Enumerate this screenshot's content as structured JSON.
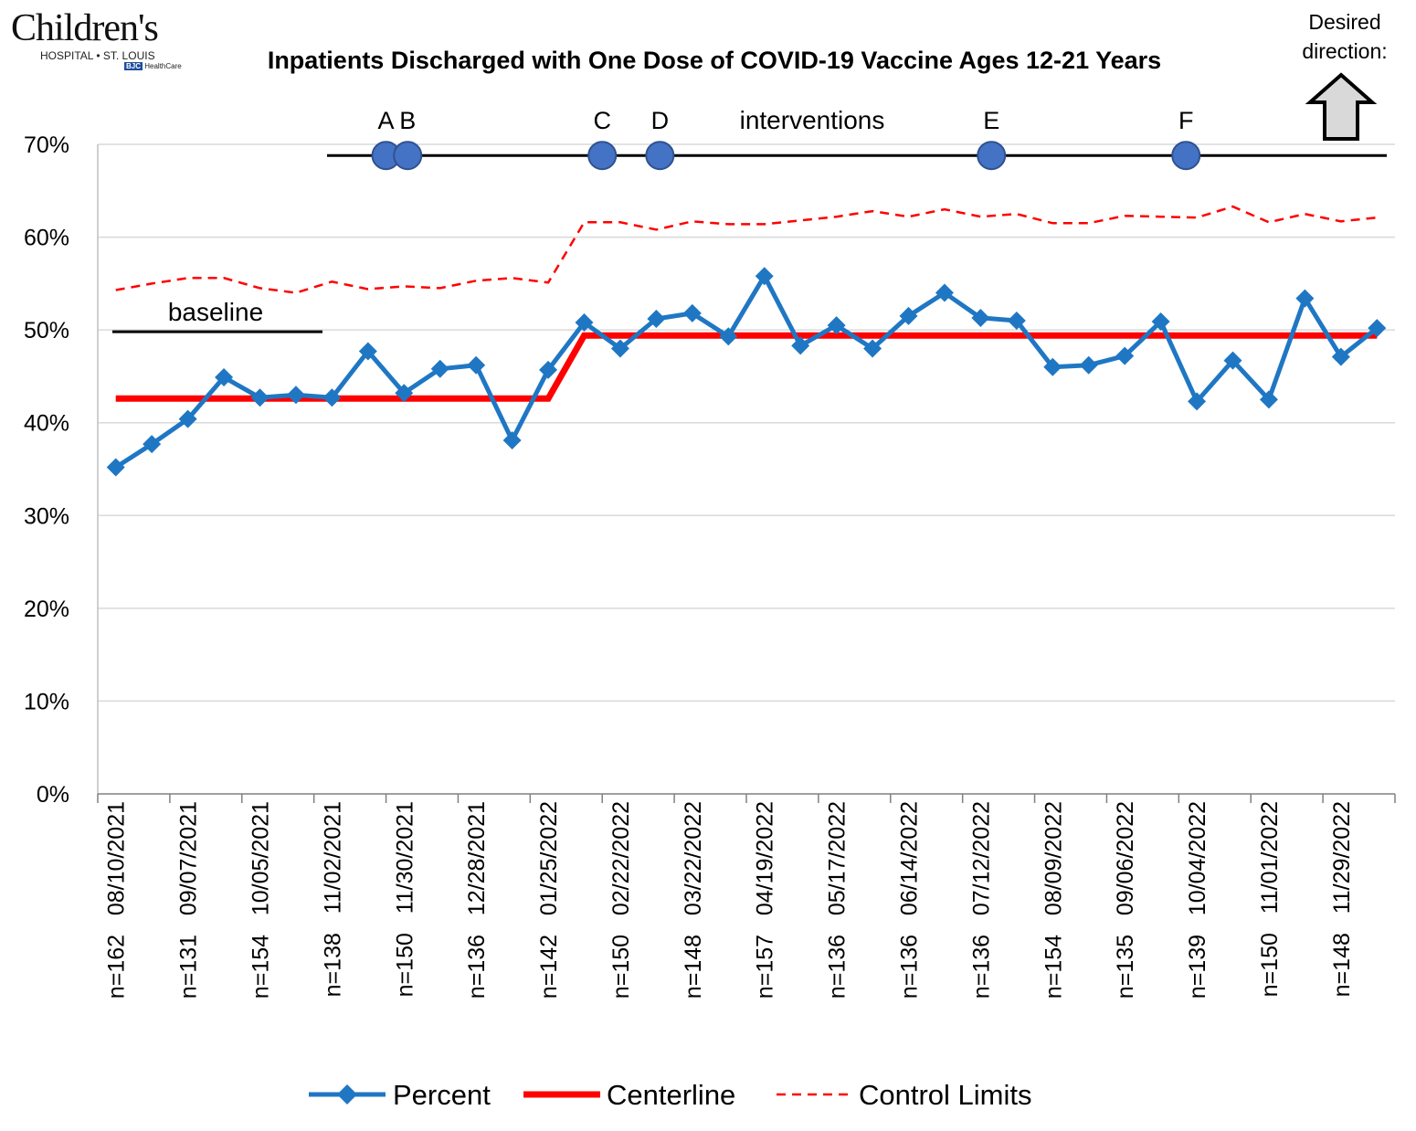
{
  "logo": {
    "name": "Children's",
    "sub": "HOSPITAL • ST. LOUIS",
    "badge_mark": "BJC",
    "badge_text": "HealthCare"
  },
  "desired": {
    "line1": "Desired",
    "line2": "direction:",
    "icon": "up-arrow-icon"
  },
  "chart_data": {
    "type": "line",
    "title": "Inpatients Discharged with One Dose of COVID-19 Vaccine Ages 12-21 Years",
    "xlabel": "",
    "ylabel": "",
    "ylim": [
      0,
      0.7
    ],
    "yticks": [
      "0%",
      "10%",
      "20%",
      "30%",
      "40%",
      "50%",
      "60%",
      "70%"
    ],
    "grid": true,
    "legend_position": "bottom",
    "x_date_labels": [
      "08/10/2021",
      "09/07/2021",
      "10/05/2021",
      "11/02/2021",
      "11/30/2021",
      "12/28/2021",
      "01/25/2022",
      "02/22/2022",
      "03/22/2022",
      "04/19/2022",
      "05/17/2022",
      "06/14/2022",
      "07/12/2022",
      "08/09/2022",
      "09/06/2022",
      "10/04/2022",
      "11/01/2022",
      "11/29/2022"
    ],
    "x_n_labels": [
      "n=162",
      "n=131",
      "n=154",
      "n=138",
      "n=150",
      "n=136",
      "n=142",
      "n=150",
      "n=148",
      "n=157",
      "n=136",
      "n=136",
      "n=136",
      "n=154",
      "n=135",
      "n=139",
      "n=150",
      "n=148"
    ],
    "series": [
      {
        "name": "Percent",
        "color": "#1F77C4",
        "values": [
          0.352,
          0.377,
          0.404,
          0.449,
          0.427,
          0.43,
          0.427,
          0.477,
          0.432,
          0.458,
          0.462,
          0.381,
          0.457,
          0.508,
          0.48,
          0.512,
          0.518,
          0.493,
          0.558,
          0.483,
          0.505,
          0.48,
          0.515,
          0.54,
          0.513,
          0.51,
          0.46,
          0.462,
          0.472,
          0.509,
          0.423,
          0.467,
          0.425,
          0.534,
          0.471,
          0.502
        ]
      },
      {
        "name": "Centerline",
        "color": "#FF0000",
        "values": [
          0.426,
          0.426,
          0.426,
          0.426,
          0.426,
          0.426,
          0.426,
          0.426,
          0.426,
          0.426,
          0.426,
          0.426,
          0.426,
          0.494,
          0.494,
          0.494,
          0.494,
          0.494,
          0.494,
          0.494,
          0.494,
          0.494,
          0.494,
          0.494,
          0.494,
          0.494,
          0.494,
          0.494,
          0.494,
          0.494,
          0.494,
          0.494,
          0.494,
          0.494,
          0.494,
          0.494
        ]
      },
      {
        "name": "Control Limits",
        "color": "#FF0000",
        "values": [
          0.543,
          0.55,
          0.556,
          0.556,
          0.545,
          0.54,
          0.552,
          0.544,
          0.547,
          0.545,
          0.553,
          0.556,
          0.551,
          0.616,
          0.616,
          0.608,
          0.617,
          0.614,
          0.614,
          0.618,
          0.622,
          0.628,
          0.622,
          0.63,
          0.622,
          0.625,
          0.615,
          0.615,
          0.623,
          0.622,
          0.621,
          0.633,
          0.616,
          0.625,
          0.617,
          0.621
        ]
      }
    ],
    "baseline_label": "baseline",
    "baseline_value": 0.498,
    "interventions_label": "interventions",
    "intervention_level": 0.688,
    "interventions": [
      {
        "label": "A",
        "x": 7.5
      },
      {
        "label": "B",
        "x": 8.1
      },
      {
        "label": "C",
        "x": 13.5
      },
      {
        "label": "D",
        "x": 15.1
      },
      {
        "label": "E",
        "x": 24.3
      },
      {
        "label": "F",
        "x": 29.7
      }
    ]
  }
}
